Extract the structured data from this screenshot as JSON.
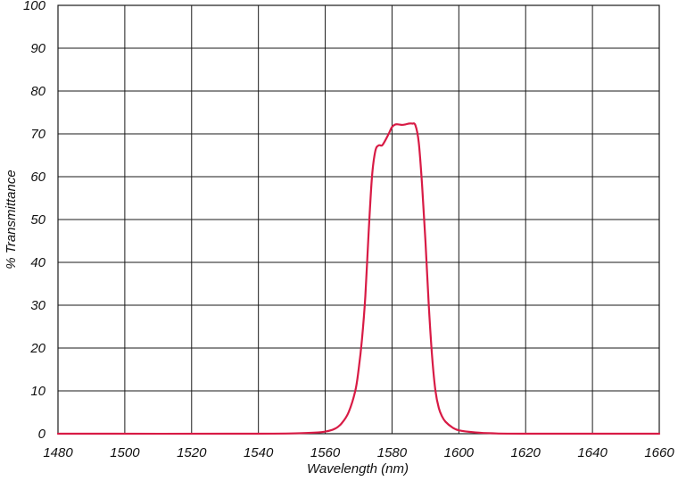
{
  "chart_data": {
    "type": "line",
    "title": "",
    "xlabel": "Wavelength (nm)",
    "ylabel": "% Transmittance",
    "xlim": [
      1480,
      1660
    ],
    "ylim": [
      0,
      100
    ],
    "x_ticks": [
      1480,
      1500,
      1520,
      1540,
      1560,
      1580,
      1600,
      1620,
      1640,
      1660
    ],
    "y_ticks": [
      0,
      10,
      20,
      30,
      40,
      50,
      60,
      70,
      80,
      90,
      100
    ],
    "grid": true,
    "series": [
      {
        "name": "",
        "color": "#d81b45",
        "x": [
          1480,
          1540,
          1555,
          1560,
          1563,
          1565,
          1567,
          1569,
          1570,
          1571,
          1572,
          1573,
          1574,
          1575,
          1576,
          1577,
          1578,
          1579,
          1580,
          1581,
          1582,
          1583,
          1584,
          1585,
          1586,
          1587,
          1588,
          1589,
          1590,
          1591,
          1592,
          1593,
          1594,
          1595,
          1596,
          1598,
          1600,
          1605,
          1610,
          1620,
          1660
        ],
        "y": [
          0,
          0,
          0.2,
          0.5,
          1.2,
          2.5,
          5,
          10,
          15,
          22,
          32,
          47,
          60,
          66,
          67.3,
          67.3,
          68.5,
          70,
          71.6,
          72.2,
          72.2,
          72.1,
          72.2,
          72.4,
          72.4,
          72,
          68,
          58,
          45,
          30,
          18,
          10,
          6,
          4,
          2.8,
          1.5,
          0.8,
          0.3,
          0.1,
          0,
          0
        ]
      }
    ]
  }
}
